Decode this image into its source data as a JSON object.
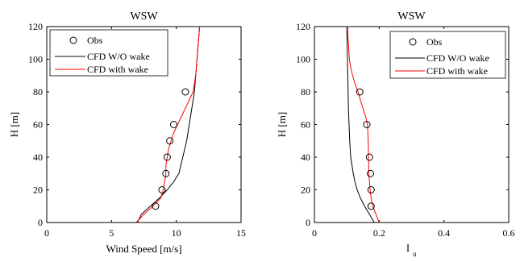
{
  "chart_data": [
    {
      "type": "line",
      "title": "WSW",
      "xlabel": "Wind Speed [m/s]",
      "ylabel": "H [m]",
      "xlim": [
        0,
        15
      ],
      "ylim": [
        0,
        120
      ],
      "xticks": [
        0,
        5,
        10,
        15
      ],
      "yticks": [
        0,
        20,
        40,
        60,
        80,
        100,
        120
      ],
      "grid": false,
      "legend_position": "top-left",
      "series": [
        {
          "name": "Obs",
          "kind": "marker",
          "color": "#000000",
          "points": [
            [
              8.4,
              10
            ],
            [
              8.9,
              20
            ],
            [
              9.2,
              30
            ],
            [
              9.3,
              40
            ],
            [
              9.5,
              50
            ],
            [
              9.8,
              60
            ],
            [
              10.7,
              80
            ]
          ]
        },
        {
          "name": "CFD W/O wake",
          "kind": "line",
          "color": "#000000",
          "points": [
            [
              7.0,
              0
            ],
            [
              7.3,
              5
            ],
            [
              8.0,
              10
            ],
            [
              8.7,
              15
            ],
            [
              9.3,
              20
            ],
            [
              9.8,
              25
            ],
            [
              10.2,
              30
            ],
            [
              10.5,
              40
            ],
            [
              10.8,
              50
            ],
            [
              11.0,
              60
            ],
            [
              11.2,
              70
            ],
            [
              11.4,
              80
            ],
            [
              11.5,
              90
            ],
            [
              11.6,
              100
            ],
            [
              11.7,
              110
            ],
            [
              11.8,
              120
            ]
          ]
        },
        {
          "name": "CFD with wake",
          "kind": "line",
          "color": "#ff0000",
          "points": [
            [
              6.9,
              0
            ],
            [
              7.5,
              5
            ],
            [
              8.2,
              10
            ],
            [
              8.8,
              15
            ],
            [
              9.0,
              20
            ],
            [
              9.1,
              25
            ],
            [
              9.2,
              30
            ],
            [
              9.2,
              35
            ],
            [
              9.3,
              40
            ],
            [
              9.4,
              45
            ],
            [
              9.6,
              50
            ],
            [
              9.8,
              55
            ],
            [
              10.1,
              60
            ],
            [
              10.4,
              65
            ],
            [
              10.7,
              70
            ],
            [
              11.0,
              75
            ],
            [
              11.3,
              80
            ],
            [
              11.5,
              90
            ],
            [
              11.6,
              100
            ],
            [
              11.7,
              110
            ],
            [
              11.8,
              120
            ]
          ]
        }
      ]
    },
    {
      "type": "line",
      "title": "WSW",
      "xlabel": "I",
      "xlabel_sub": "u",
      "ylabel": "H [m]",
      "xlim": [
        0,
        0.6
      ],
      "ylim": [
        0,
        120
      ],
      "xticks": [
        0,
        0.2,
        0.4,
        0.6
      ],
      "yticks": [
        0,
        20,
        40,
        60,
        80,
        100,
        120
      ],
      "grid": false,
      "legend_position": "top-right",
      "series": [
        {
          "name": "Obs",
          "kind": "marker",
          "color": "#000000",
          "points": [
            [
              0.175,
              10
            ],
            [
              0.175,
              20
            ],
            [
              0.173,
              30
            ],
            [
              0.17,
              40
            ],
            [
              0.162,
              60
            ],
            [
              0.14,
              80
            ]
          ]
        },
        {
          "name": "CFD W/O wake",
          "kind": "line",
          "color": "#000000",
          "points": [
            [
              0.185,
              0
            ],
            [
              0.17,
              5
            ],
            [
              0.155,
              10
            ],
            [
              0.142,
              15
            ],
            [
              0.132,
              20
            ],
            [
              0.125,
              25
            ],
            [
              0.12,
              30
            ],
            [
              0.116,
              35
            ],
            [
              0.112,
              40
            ],
            [
              0.109,
              50
            ],
            [
              0.107,
              60
            ],
            [
              0.105,
              70
            ],
            [
              0.104,
              80
            ],
            [
              0.103,
              90
            ],
            [
              0.102,
              100
            ],
            [
              0.101,
              110
            ],
            [
              0.1,
              120
            ]
          ]
        },
        {
          "name": "CFD with wake",
          "kind": "line",
          "color": "#ff0000",
          "points": [
            [
              0.2,
              0
            ],
            [
              0.19,
              5
            ],
            [
              0.18,
              10
            ],
            [
              0.175,
              15
            ],
            [
              0.172,
              20
            ],
            [
              0.17,
              25
            ],
            [
              0.168,
              30
            ],
            [
              0.167,
              40
            ],
            [
              0.166,
              50
            ],
            [
              0.164,
              60
            ],
            [
              0.158,
              65
            ],
            [
              0.15,
              70
            ],
            [
              0.142,
              75
            ],
            [
              0.135,
              80
            ],
            [
              0.125,
              85
            ],
            [
              0.118,
              90
            ],
            [
              0.112,
              95
            ],
            [
              0.108,
              100
            ],
            [
              0.105,
              110
            ],
            [
              0.102,
              120
            ]
          ]
        }
      ]
    }
  ]
}
